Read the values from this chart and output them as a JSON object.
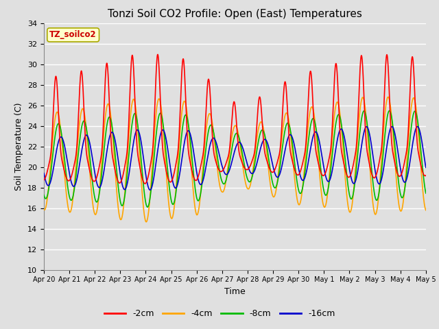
{
  "title": "Tonzi Soil CO2 Profile: Open (East) Temperatures",
  "xlabel": "Time",
  "ylabel": "Soil Temperature (C)",
  "ylim": [
    10,
    34
  ],
  "background_color": "#e0e0e0",
  "plot_bg_color": "#e0e0e0",
  "grid_color": "white",
  "legend_label": "TZ_soilco2",
  "series_labels": [
    "-2cm",
    "-4cm",
    "-8cm",
    "-16cm"
  ],
  "series_colors": [
    "#ff0000",
    "#ffa500",
    "#00bb00",
    "#0000cc"
  ],
  "line_width": 1.2,
  "tick_labels": [
    "Apr 20",
    "Apr 21",
    "Apr 22",
    "Apr 23",
    "Apr 24",
    "Apr 25",
    "Apr 26",
    "Apr 27",
    "Apr 28",
    "Apr 29",
    "Apr 30",
    "May 1",
    "May 2",
    "May 3",
    "May 4",
    "May 5"
  ],
  "num_days": 15,
  "num_points": 1500,
  "base_mean": 20.5,
  "base_trend": 0.05,
  "amp_2cm": 9.5,
  "amp_4cm": 5.5,
  "amp_8cm": 4.2,
  "amp_16cm": 2.7,
  "phase_2cm": 0.22,
  "phase_4cm": 0.27,
  "phase_8cm": 0.32,
  "phase_16cm": 0.42,
  "sharpness_2cm": 3.5,
  "amp_variation": [
    0.85,
    0.9,
    0.95,
    1.05,
    1.1,
    1.05,
    1.0,
    0.6,
    0.55,
    0.7,
    0.85,
    0.9,
    1.0,
    1.05,
    1.0
  ]
}
